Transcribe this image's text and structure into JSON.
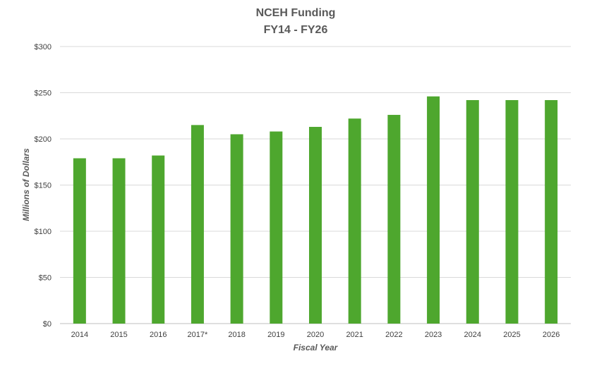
{
  "chart_data": {
    "type": "bar",
    "title": "NCEH Funding",
    "subtitle": "FY14 - FY26",
    "xlabel": "Fiscal Year",
    "ylabel": "Millions of Dollars",
    "categories": [
      "2014",
      "2015",
      "2016",
      "2017*",
      "2018",
      "2019",
      "2020",
      "2021",
      "2022",
      "2023",
      "2024",
      "2025",
      "2026"
    ],
    "values": [
      179,
      179,
      182,
      215,
      205,
      208,
      213,
      222,
      226,
      246,
      242,
      242,
      242
    ],
    "ylim": [
      0,
      300
    ],
    "yticks": [
      0,
      50,
      100,
      150,
      200,
      250,
      300
    ],
    "ytick_labels": [
      "$0",
      "$50",
      "$100",
      "$150",
      "$200",
      "$250",
      "$300"
    ],
    "bar_color": "#4ea72e",
    "grid": true,
    "legend": "none"
  }
}
